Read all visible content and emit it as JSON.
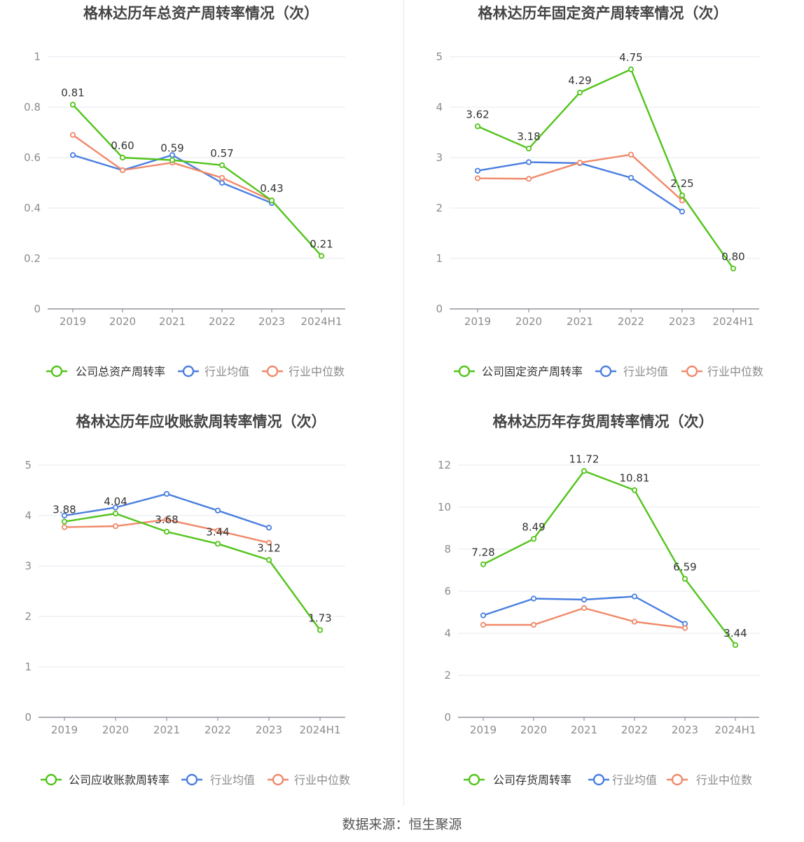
{
  "colors": {
    "company": "#52c41a",
    "industry_avg": "#4a7fe0",
    "industry_median": "#f0896a",
    "grid": "#e4e8f2",
    "axis": "#7a7f8a",
    "tick_text": "#8c8c8c",
    "label_text": "#333333",
    "title_text": "#444444",
    "legend_text": "#555555"
  },
  "footer": "数据来源：恒生聚源",
  "chart_data": [
    {
      "type": "line",
      "title": "格林达历年总资产周转率情况（次）",
      "categories": [
        "2019",
        "2020",
        "2021",
        "2022",
        "2023",
        "2024H1"
      ],
      "ylim": [
        0,
        1
      ],
      "yticks": [
        0,
        0.2,
        0.4,
        0.6,
        0.8,
        1
      ],
      "ytick_labels": [
        "0",
        "0.2",
        "0.4",
        "0.6",
        "0.8",
        "1"
      ],
      "series": [
        {
          "name": "公司总资产周转率",
          "role": "company",
          "values": [
            0.81,
            0.6,
            0.59,
            0.57,
            0.43,
            0.21
          ],
          "labels": [
            "0.81",
            "0.60",
            "0.59",
            "0.57",
            "0.43",
            "0.21"
          ]
        },
        {
          "name": "行业均值",
          "role": "industry_avg",
          "values": [
            0.61,
            0.55,
            0.61,
            0.5,
            0.42,
            null
          ]
        },
        {
          "name": "行业中位数",
          "role": "industry_median",
          "values": [
            0.69,
            0.55,
            0.58,
            0.52,
            0.43,
            null
          ]
        }
      ]
    },
    {
      "type": "line",
      "title": "格林达历年固定资产周转率情况（次）",
      "categories": [
        "2019",
        "2020",
        "2021",
        "2022",
        "2023",
        "2024H1"
      ],
      "ylim": [
        0,
        5
      ],
      "yticks": [
        0,
        1,
        2,
        3,
        4,
        5
      ],
      "ytick_labels": [
        "0",
        "1",
        "2",
        "3",
        "4",
        "5"
      ],
      "series": [
        {
          "name": "公司固定资产周转率",
          "role": "company",
          "values": [
            3.62,
            3.18,
            4.29,
            4.75,
            2.25,
            0.8
          ],
          "labels": [
            "3.62",
            "3.18",
            "4.29",
            "4.75",
            "2.25",
            "0.80"
          ]
        },
        {
          "name": "行业均值",
          "role": "industry_avg",
          "values": [
            2.74,
            2.91,
            2.89,
            2.6,
            1.93,
            null
          ]
        },
        {
          "name": "行业中位数",
          "role": "industry_median",
          "values": [
            2.59,
            2.58,
            2.9,
            3.06,
            2.15,
            null
          ]
        }
      ]
    },
    {
      "type": "line",
      "title": "格林达历年应收账款周转率情况（次）",
      "categories": [
        "2019",
        "2020",
        "2021",
        "2022",
        "2023",
        "2024H1"
      ],
      "ylim": [
        0,
        5
      ],
      "yticks": [
        0,
        1,
        2,
        3,
        4,
        5
      ],
      "ytick_labels": [
        "0",
        "1",
        "2",
        "3",
        "4",
        "5"
      ],
      "series": [
        {
          "name": "公司应收账款周转率",
          "role": "company",
          "values": [
            3.88,
            4.04,
            3.68,
            3.44,
            3.12,
            1.73
          ],
          "labels": [
            "3.88",
            "4.04",
            "3.68",
            "3.44",
            "3.12",
            "1.73"
          ]
        },
        {
          "name": "行业均值",
          "role": "industry_avg",
          "values": [
            4.0,
            4.16,
            4.43,
            4.1,
            3.76,
            null
          ]
        },
        {
          "name": "行业中位数",
          "role": "industry_median",
          "values": [
            3.77,
            3.79,
            3.92,
            3.7,
            3.46,
            null
          ]
        }
      ]
    },
    {
      "type": "line",
      "title": "格林达历年存货周转率情况（次）",
      "categories": [
        "2019",
        "2020",
        "2021",
        "2022",
        "2023",
        "2024H1"
      ],
      "ylim": [
        0,
        12
      ],
      "yticks": [
        0,
        2,
        4,
        6,
        8,
        10,
        12
      ],
      "ytick_labels": [
        "0",
        "2",
        "4",
        "6",
        "8",
        "10",
        "12"
      ],
      "series": [
        {
          "name": "公司存货周转率",
          "role": "company",
          "values": [
            7.28,
            8.49,
            11.72,
            10.81,
            6.59,
            3.44
          ],
          "labels": [
            "7.28",
            "8.49",
            "11.72",
            "10.81",
            "6.59",
            "3.44"
          ]
        },
        {
          "name": "行业均值",
          "role": "industry_avg",
          "values": [
            4.85,
            5.65,
            5.6,
            5.75,
            4.45,
            null
          ]
        },
        {
          "name": "行业中位数",
          "role": "industry_median",
          "values": [
            4.4,
            4.4,
            5.2,
            4.55,
            4.25,
            null
          ]
        }
      ]
    }
  ]
}
